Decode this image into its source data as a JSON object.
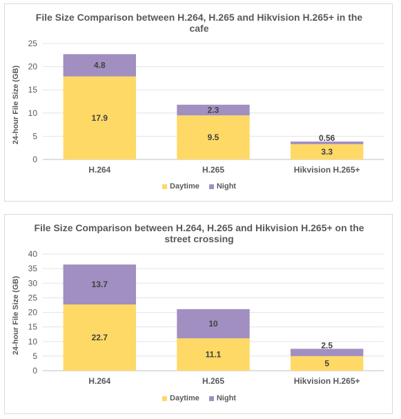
{
  "colors": {
    "daytime": "#FFD966",
    "night": "#A08FC0",
    "grid": "#e3e3e3",
    "axis": "#bfbfbf",
    "text": "#595959",
    "label": "#404040"
  },
  "chart_data": [
    {
      "type": "bar",
      "stacked": true,
      "title": "File Size Comparison between H.264, H.265 and Hikvision H.265+ in the cafe",
      "title_lines": [
        "File Size Comparison between H.264, H.265 and Hikvision H.265+ in the",
        "cafe"
      ],
      "xlabel": "",
      "ylabel": "24-hour File Size (GB)",
      "ylim": [
        0,
        25
      ],
      "yticks": [
        0,
        5,
        10,
        15,
        20,
        25
      ],
      "grid": true,
      "legend_position": "bottom",
      "categories": [
        "H.264",
        "H.265",
        "Hikvision H.265+"
      ],
      "series": [
        {
          "name": "Daytime",
          "values": [
            17.9,
            9.5,
            3.3
          ],
          "labels": [
            "17.9",
            "9.5",
            "3.3"
          ]
        },
        {
          "name": "Night",
          "values": [
            4.8,
            2.3,
            0.56
          ],
          "labels": [
            "4.8",
            "2.3",
            "0.56"
          ]
        }
      ]
    },
    {
      "type": "bar",
      "stacked": true,
      "title": "File Size Comparison between H.264, H.265 and Hikvision H.265+ on the street crossing",
      "title_lines": [
        "File Size Comparison between H.264, H.265 and Hikvision H.265+ on the",
        "street crossing"
      ],
      "xlabel": "",
      "ylabel": "24-hour File Size (GB)",
      "ylim": [
        0,
        40
      ],
      "yticks": [
        0,
        5,
        10,
        15,
        20,
        25,
        30,
        35,
        40
      ],
      "grid": true,
      "legend_position": "bottom",
      "categories": [
        "H.264",
        "H.265",
        "Hikvision H.265+"
      ],
      "series": [
        {
          "name": "Daytime",
          "values": [
            22.7,
            11.1,
            5
          ],
          "labels": [
            "22.7",
            "11.1",
            "5"
          ]
        },
        {
          "name": "Night",
          "values": [
            13.7,
            10,
            2.5
          ],
          "labels": [
            "13.7",
            "10",
            "2.5"
          ]
        }
      ]
    }
  ]
}
